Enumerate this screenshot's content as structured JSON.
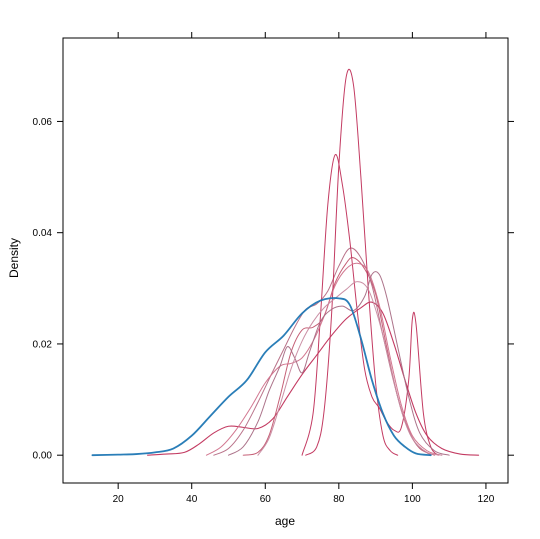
{
  "chart_data": {
    "type": "line",
    "title": "",
    "xlabel": "age",
    "ylabel": "Density",
    "xlim": [
      5,
      126
    ],
    "ylim": [
      -0.005,
      0.075
    ],
    "x_ticks": [
      20,
      40,
      60,
      80,
      100,
      120
    ],
    "x_tick_labels": [
      "20",
      "40",
      "60",
      "80",
      "100",
      "120"
    ],
    "y_ticks": [
      0.0,
      0.02,
      0.04,
      0.06
    ],
    "y_tick_labels": [
      "0.00",
      "0.02",
      "0.04",
      "0.06"
    ],
    "grid": false,
    "legend": "none",
    "colors": {
      "blue": "#1f77b4",
      "magenta": "#c0305a",
      "pink_a": "#c2566f",
      "pink_b": "#b56a83",
      "pink_c": "#d0708a",
      "pink_d": "#a86b84",
      "axis": "#000000"
    },
    "series": [
      {
        "color": "#1f77b4",
        "width": 1.8,
        "points": [
          [
            13,
            0.0
          ],
          [
            20,
            0.0001
          ],
          [
            25,
            0.0002
          ],
          [
            30,
            0.0005
          ],
          [
            35,
            0.0012
          ],
          [
            40,
            0.0035
          ],
          [
            45,
            0.007
          ],
          [
            50,
            0.0105
          ],
          [
            55,
            0.0135
          ],
          [
            60,
            0.0185
          ],
          [
            65,
            0.0215
          ],
          [
            70,
            0.0255
          ],
          [
            75,
            0.0278
          ],
          [
            80,
            0.0282
          ],
          [
            83,
            0.027
          ],
          [
            86,
            0.021
          ],
          [
            89,
            0.0135
          ],
          [
            92,
            0.0075
          ],
          [
            95,
            0.0035
          ],
          [
            98,
            0.0015
          ],
          [
            101,
            0.0003
          ],
          [
            105,
            0.0
          ]
        ]
      },
      {
        "color": "#c0305a",
        "width": 1.1,
        "points": [
          [
            28,
            0.0
          ],
          [
            33,
            0.0002
          ],
          [
            38,
            0.0005
          ],
          [
            42,
            0.002
          ],
          [
            46,
            0.004
          ],
          [
            50,
            0.0052
          ],
          [
            54,
            0.005
          ],
          [
            58,
            0.0048
          ],
          [
            62,
            0.0065
          ],
          [
            66,
            0.0105
          ],
          [
            70,
            0.0145
          ],
          [
            74,
            0.018
          ],
          [
            78,
            0.0215
          ],
          [
            82,
            0.0245
          ],
          [
            86,
            0.0265
          ],
          [
            89,
            0.0275
          ],
          [
            92,
            0.0255
          ],
          [
            95,
            0.02
          ],
          [
            98,
            0.0135
          ],
          [
            101,
            0.0075
          ],
          [
            104,
            0.0035
          ],
          [
            108,
            0.0012
          ],
          [
            113,
            0.0002
          ],
          [
            118,
            0.0
          ]
        ]
      },
      {
        "color": "#c2566f",
        "width": 1.0,
        "points": [
          [
            54,
            0.0
          ],
          [
            58,
            0.0005
          ],
          [
            61,
            0.0035
          ],
          [
            64,
            0.0105
          ],
          [
            67,
            0.0185
          ],
          [
            70,
            0.0225
          ],
          [
            73,
            0.023
          ],
          [
            76,
            0.025
          ],
          [
            79,
            0.031
          ],
          [
            82,
            0.0345
          ],
          [
            84,
            0.0355
          ],
          [
            87,
            0.0335
          ],
          [
            90,
            0.029
          ],
          [
            93,
            0.0195
          ],
          [
            96,
            0.0105
          ],
          [
            99,
            0.0045
          ],
          [
            102,
            0.0012
          ],
          [
            106,
            0.0
          ]
        ]
      },
      {
        "color": "#b56a83",
        "width": 1.0,
        "points": [
          [
            46,
            0.0
          ],
          [
            50,
            0.0012
          ],
          [
            54,
            0.0045
          ],
          [
            58,
            0.0095
          ],
          [
            62,
            0.015
          ],
          [
            65,
            0.019
          ],
          [
            68,
            0.023
          ],
          [
            71,
            0.0262
          ],
          [
            74,
            0.0272
          ],
          [
            77,
            0.0295
          ],
          [
            80,
            0.034
          ],
          [
            83,
            0.0372
          ],
          [
            86,
            0.0355
          ],
          [
            89,
            0.0305
          ],
          [
            92,
            0.0215
          ],
          [
            95,
            0.013
          ],
          [
            98,
            0.006
          ],
          [
            101,
            0.002
          ],
          [
            105,
            0.0
          ]
        ]
      },
      {
        "color": "#c0305a",
        "width": 1.0,
        "points": [
          [
            70,
            0.0
          ],
          [
            73,
            0.0075
          ],
          [
            75,
            0.025
          ],
          [
            77,
            0.045
          ],
          [
            79,
            0.054
          ],
          [
            81,
            0.0485
          ],
          [
            83,
            0.0385
          ],
          [
            85,
            0.026
          ],
          [
            87,
            0.0155
          ],
          [
            89,
            0.0105
          ],
          [
            91,
            0.0085
          ],
          [
            93,
            0.006
          ],
          [
            95,
            0.0045
          ],
          [
            97,
            0.005
          ],
          [
            99,
            0.0135
          ],
          [
            100,
            0.0245
          ],
          [
            101,
            0.0235
          ],
          [
            103,
            0.0075
          ],
          [
            105,
            0.0015
          ],
          [
            107,
            0.0
          ]
        ]
      },
      {
        "color": "#c0305a",
        "width": 1.0,
        "points": [
          [
            71,
            0.0
          ],
          [
            74,
            0.0015
          ],
          [
            76,
            0.008
          ],
          [
            78,
            0.025
          ],
          [
            80,
            0.052
          ],
          [
            82,
            0.068
          ],
          [
            84,
            0.0665
          ],
          [
            86,
            0.05
          ],
          [
            88,
            0.03
          ],
          [
            90,
            0.013
          ],
          [
            92,
            0.0035
          ],
          [
            94,
            0.0008
          ],
          [
            96,
            0.0
          ]
        ]
      },
      {
        "color": "#d0708a",
        "width": 1.0,
        "points": [
          [
            44,
            0.0
          ],
          [
            48,
            0.0015
          ],
          [
            52,
            0.0045
          ],
          [
            56,
            0.0085
          ],
          [
            60,
            0.013
          ],
          [
            64,
            0.016
          ],
          [
            67,
            0.0165
          ],
          [
            70,
            0.0175
          ],
          [
            73,
            0.0205
          ],
          [
            76,
            0.025
          ],
          [
            79,
            0.0305
          ],
          [
            82,
            0.0335
          ],
          [
            85,
            0.0345
          ],
          [
            88,
            0.033
          ],
          [
            91,
            0.027
          ],
          [
            94,
            0.0175
          ],
          [
            97,
            0.009
          ],
          [
            100,
            0.0035
          ],
          [
            104,
            0.0008
          ],
          [
            108,
            0.0
          ]
        ]
      },
      {
        "color": "#a86b84",
        "width": 1.0,
        "points": [
          [
            50,
            0.0
          ],
          [
            54,
            0.0015
          ],
          [
            58,
            0.006
          ],
          [
            61,
            0.0115
          ],
          [
            64,
            0.016
          ],
          [
            66,
            0.0195
          ],
          [
            68,
            0.0175
          ],
          [
            70,
            0.0148
          ],
          [
            72,
            0.0185
          ],
          [
            75,
            0.024
          ],
          [
            78,
            0.0262
          ],
          [
            81,
            0.0268
          ],
          [
            84,
            0.026
          ],
          [
            87,
            0.0285
          ],
          [
            89,
            0.0325
          ],
          [
            91,
            0.0325
          ],
          [
            93,
            0.0285
          ],
          [
            96,
            0.0195
          ],
          [
            99,
            0.0105
          ],
          [
            102,
            0.004
          ],
          [
            106,
            0.0008
          ],
          [
            110,
            0.0
          ]
        ]
      },
      {
        "color": "#c88aa0",
        "width": 1.0,
        "points": [
          [
            58,
            0.0
          ],
          [
            61,
            0.003
          ],
          [
            64,
            0.009
          ],
          [
            67,
            0.0155
          ],
          [
            70,
            0.0205
          ],
          [
            73,
            0.024
          ],
          [
            76,
            0.0265
          ],
          [
            79,
            0.0282
          ],
          [
            82,
            0.0298
          ],
          [
            85,
            0.0312
          ],
          [
            88,
            0.0298
          ],
          [
            91,
            0.024
          ],
          [
            94,
            0.016
          ],
          [
            97,
            0.008
          ],
          [
            100,
            0.003
          ],
          [
            104,
            0.0005
          ],
          [
            108,
            0.0
          ]
        ]
      }
    ]
  }
}
